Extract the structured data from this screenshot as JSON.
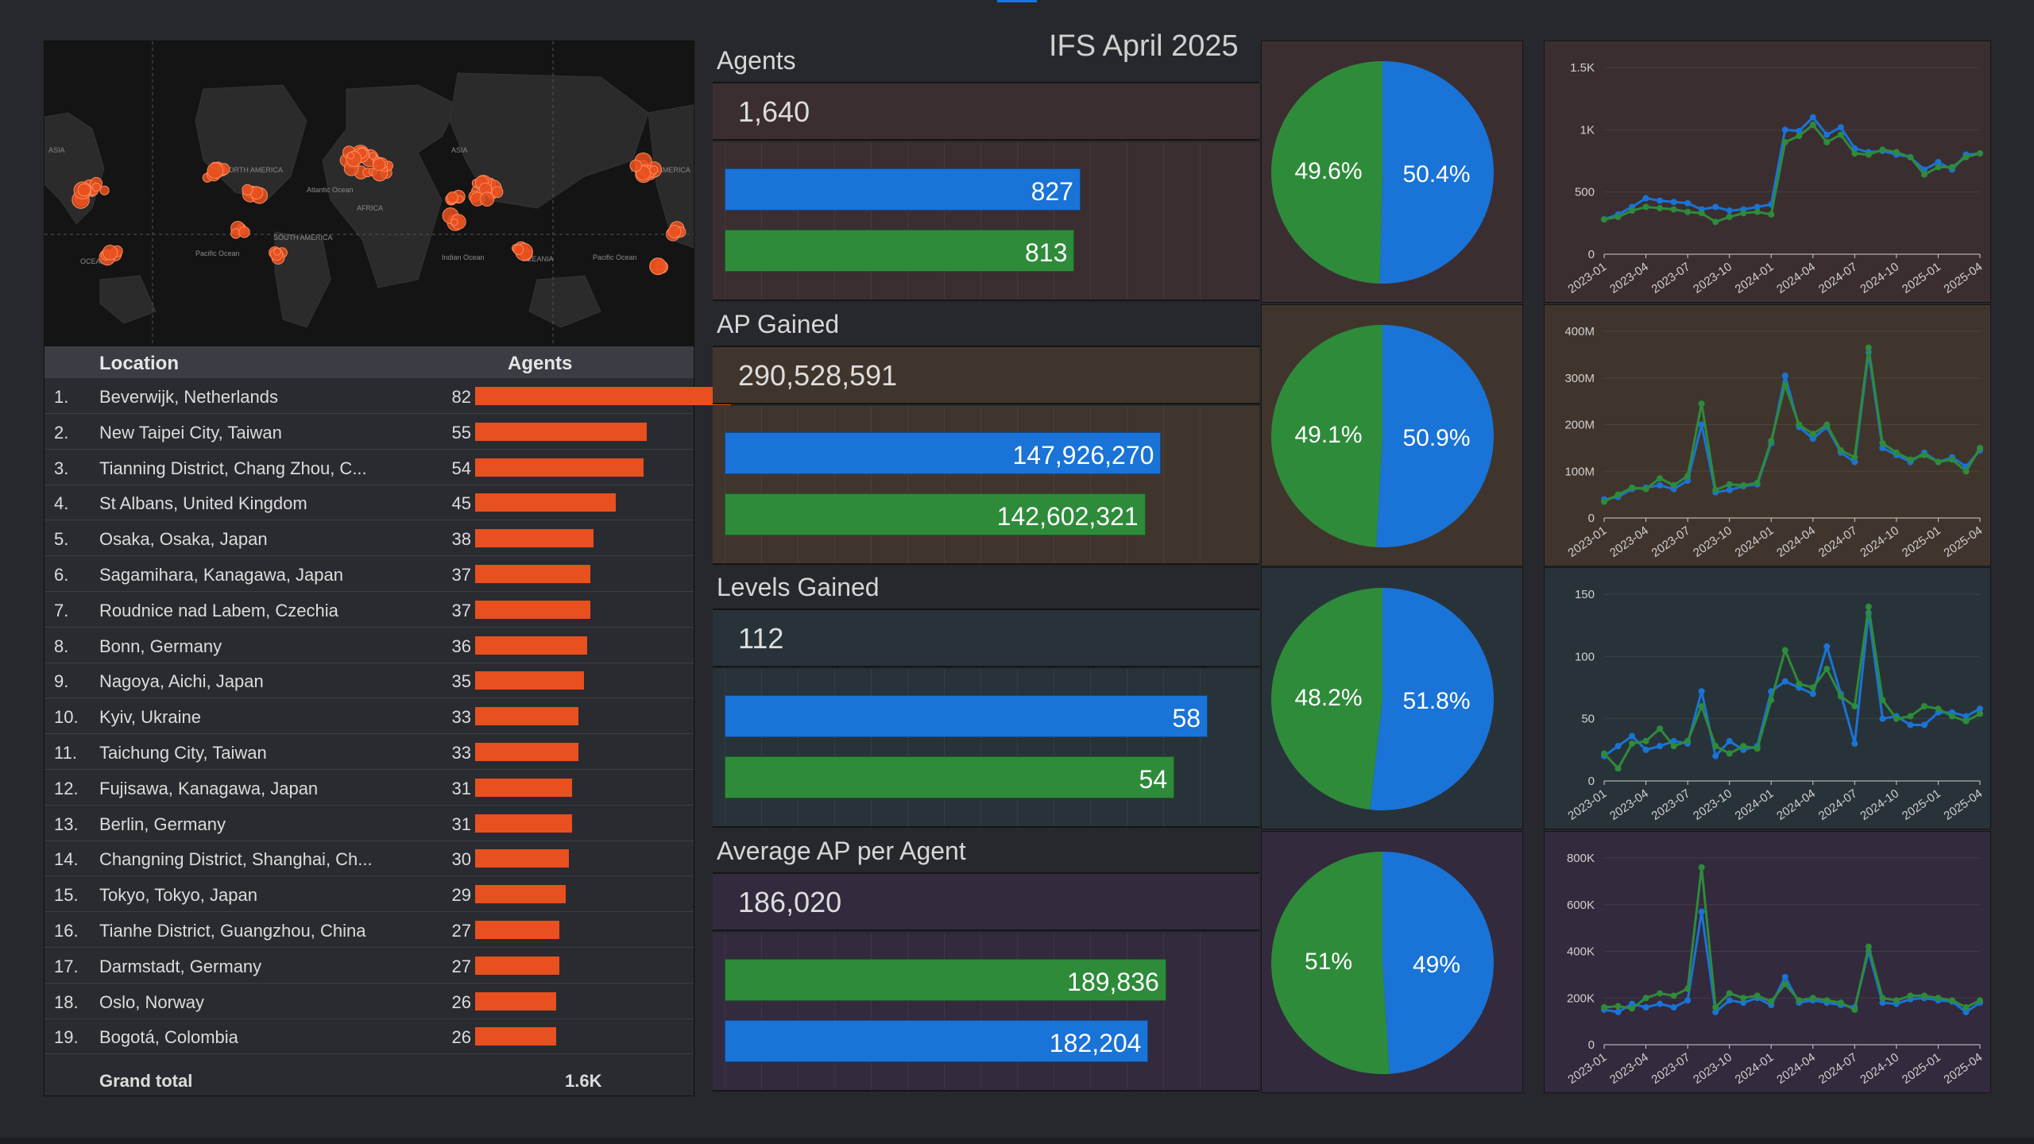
{
  "dashboard": {
    "title": "IFS April 2025"
  },
  "colors": {
    "blue": "#1a73d6",
    "green": "#2e8b3a",
    "bar_orange": "#e8501f",
    "agents_bg": "#3b2e31",
    "ap_bg": "#40352d",
    "levels_bg": "#283339",
    "avg_bg": "#332a3d"
  },
  "map": {
    "continent_labels": [
      "ASIA",
      "NORTH AMERICA",
      "Atlantic Ocean",
      "AFRICA",
      "ASIA",
      "NORTH AMERICA",
      "OCEANIA",
      "SOUTH AMERICA",
      "Indian Ocean",
      "OCEANIA",
      "Pacific Ocean",
      "Pacific Ocean"
    ],
    "marker_color": "#e8501f"
  },
  "table": {
    "header_location": "Location",
    "header_agents": "Agents",
    "rows": [
      {
        "num": "1.",
        "location": "Beverwijk, Netherlands",
        "agents": 82
      },
      {
        "num": "2.",
        "location": "New Taipei City, Taiwan",
        "agents": 55
      },
      {
        "num": "3.",
        "location": "Tianning District, Chang Zhou, C...",
        "agents": 54
      },
      {
        "num": "4.",
        "location": "St Albans, United Kingdom",
        "agents": 45
      },
      {
        "num": "5.",
        "location": "Osaka, Osaka, Japan",
        "agents": 38
      },
      {
        "num": "6.",
        "location": "Sagamihara, Kanagawa, Japan",
        "agents": 37
      },
      {
        "num": "7.",
        "location": "Roudnice nad Labem, Czechia",
        "agents": 37
      },
      {
        "num": "8.",
        "location": "Bonn, Germany",
        "agents": 36
      },
      {
        "num": "9.",
        "location": "Nagoya, Aichi, Japan",
        "agents": 35
      },
      {
        "num": "10.",
        "location": "Kyiv, Ukraine",
        "agents": 33
      },
      {
        "num": "11.",
        "location": "Taichung City, Taiwan",
        "agents": 33
      },
      {
        "num": "12.",
        "location": "Fujisawa, Kanagawa, Japan",
        "agents": 31
      },
      {
        "num": "13.",
        "location": "Berlin, Germany",
        "agents": 31
      },
      {
        "num": "14.",
        "location": "Changning District, Shanghai, Ch...",
        "agents": 30
      },
      {
        "num": "15.",
        "location": "Tokyo, Tokyo, Japan",
        "agents": 29
      },
      {
        "num": "16.",
        "location": "Tianhe District, Guangzhou, China",
        "agents": 27
      },
      {
        "num": "17.",
        "location": "Darmstadt, Germany",
        "agents": 27
      },
      {
        "num": "18.",
        "location": "Oslo, Norway",
        "agents": 26
      },
      {
        "num": "19.",
        "location": "Bogotá, Colombia",
        "agents": 26
      }
    ],
    "grand_total_label": "Grand total",
    "grand_total_value": "1.6K"
  },
  "sections": [
    {
      "key": "agents",
      "title": "Agents",
      "total": "1,640",
      "bg": "#3b2e31",
      "bars": [
        {
          "color": "blue",
          "value": 827,
          "label": "827"
        },
        {
          "color": "green",
          "value": 813,
          "label": "813"
        }
      ],
      "bar_max": 1200,
      "pie": {
        "blue_pct": 50.4,
        "green_pct": 49.6,
        "blue_label": "50.4%",
        "green_label": "49.6%"
      }
    },
    {
      "key": "ap",
      "title": "AP Gained",
      "total": "290,528,591",
      "bg": "#40352d",
      "bars": [
        {
          "color": "blue",
          "value": 147926270,
          "label": "147,926,270"
        },
        {
          "color": "green",
          "value": 142602321,
          "label": "142,602,321"
        }
      ],
      "bar_max": 175000000,
      "pie": {
        "blue_pct": 50.9,
        "green_pct": 49.1,
        "blue_label": "50.9%",
        "green_label": "49.1%"
      }
    },
    {
      "key": "levels",
      "title": "Levels Gained",
      "total": "112",
      "bg": "#283339",
      "bars": [
        {
          "color": "blue",
          "value": 58,
          "label": "58"
        },
        {
          "color": "green",
          "value": 54,
          "label": "54"
        }
      ],
      "bar_max": 62,
      "pie": {
        "blue_pct": 51.8,
        "green_pct": 48.2,
        "blue_label": "51.8%",
        "green_label": "48.2%"
      }
    },
    {
      "key": "avg",
      "title": "Average AP per Agent",
      "total": "186,020",
      "bg": "#332a3d",
      "bars": [
        {
          "color": "green",
          "value": 189836,
          "label": "189,836"
        },
        {
          "color": "blue",
          "value": 182204,
          "label": "182,204"
        }
      ],
      "bar_max": 222000,
      "pie": {
        "blue_pct": 49,
        "green_pct": 51,
        "blue_label": "49%",
        "green_label": "51%"
      }
    }
  ],
  "chart_data": [
    {
      "type": "bar",
      "title": "Location / Agents",
      "categories": [
        "Beverwijk, Netherlands",
        "New Taipei City, Taiwan",
        "Tianning District, Chang Zhou, C...",
        "St Albans, United Kingdom",
        "Osaka, Osaka, Japan",
        "Sagamihara, Kanagawa, Japan",
        "Roudnice nad Labem, Czechia",
        "Bonn, Germany",
        "Nagoya, Aichi, Japan",
        "Kyiv, Ukraine",
        "Taichung City, Taiwan",
        "Fujisawa, Kanagawa, Japan",
        "Berlin, Germany",
        "Changning District, Shanghai, Ch...",
        "Tokyo, Tokyo, Japan",
        "Tianhe District, Guangzhou, China",
        "Darmstadt, Germany",
        "Oslo, Norway",
        "Bogotá, Colombia"
      ],
      "values": [
        82,
        55,
        54,
        45,
        38,
        37,
        37,
        36,
        35,
        33,
        33,
        31,
        31,
        30,
        29,
        27,
        27,
        26,
        26
      ]
    },
    {
      "type": "line",
      "key": "agents",
      "x": [
        "2023-01",
        "2023-02",
        "2023-03",
        "2023-04",
        "2023-05",
        "2023-06",
        "2023-07",
        "2023-08",
        "2023-09",
        "2023-10",
        "2023-11",
        "2023-12",
        "2024-01",
        "2024-02",
        "2024-03",
        "2024-04",
        "2024-05",
        "2024-06",
        "2024-07",
        "2024-08",
        "2024-09",
        "2024-10",
        "2024-11",
        "2024-12",
        "2025-01",
        "2025-02",
        "2025-03",
        "2025-04"
      ],
      "x_ticks": [
        "2023-01",
        "2023-04",
        "2023-07",
        "2023-10",
        "2024-01",
        "2024-04",
        "2024-07",
        "2024-10",
        "2025-01",
        "2025-04"
      ],
      "y_ticks": [
        {
          "v": 0,
          "label": "0"
        },
        {
          "v": 500,
          "label": "500"
        },
        {
          "v": 1000,
          "label": "1K"
        },
        {
          "v": 1500,
          "label": "1.5K"
        }
      ],
      "ylim": [
        0,
        1500
      ],
      "series": [
        {
          "color": "blue",
          "values": [
            280,
            320,
            380,
            450,
            430,
            420,
            410,
            360,
            380,
            350,
            360,
            380,
            400,
            1000,
            990,
            1100,
            960,
            1020,
            850,
            820,
            830,
            800,
            780,
            680,
            740,
            680,
            800,
            810
          ]
        },
        {
          "color": "green",
          "values": [
            280,
            300,
            350,
            380,
            370,
            360,
            340,
            330,
            260,
            300,
            330,
            340,
            320,
            900,
            950,
            1040,
            900,
            960,
            810,
            800,
            840,
            820,
            780,
            640,
            700,
            700,
            780,
            810
          ]
        }
      ]
    },
    {
      "type": "line",
      "key": "ap",
      "x": [
        "2023-01",
        "2023-02",
        "2023-03",
        "2023-04",
        "2023-05",
        "2023-06",
        "2023-07",
        "2023-08",
        "2023-09",
        "2023-10",
        "2023-11",
        "2023-12",
        "2024-01",
        "2024-02",
        "2024-03",
        "2024-04",
        "2024-05",
        "2024-06",
        "2024-07",
        "2024-08",
        "2024-09",
        "2024-10",
        "2024-11",
        "2024-12",
        "2025-01",
        "2025-02",
        "2025-03",
        "2025-04"
      ],
      "x_ticks": [
        "2023-01",
        "2023-04",
        "2023-07",
        "2023-10",
        "2024-01",
        "2024-04",
        "2024-07",
        "2024-10",
        "2025-01",
        "2025-04"
      ],
      "y_ticks": [
        {
          "v": 0,
          "label": "0"
        },
        {
          "v": 100000000,
          "label": "100M"
        },
        {
          "v": 200000000,
          "label": "200M"
        },
        {
          "v": 300000000,
          "label": "300M"
        },
        {
          "v": 400000000,
          "label": "400M"
        }
      ],
      "ylim": [
        0,
        400000000
      ],
      "series": [
        {
          "color": "blue",
          "values": [
            40000000,
            45000000,
            62000000,
            65000000,
            70000000,
            62000000,
            80000000,
            200000000,
            55000000,
            60000000,
            68000000,
            72000000,
            160000000,
            305000000,
            195000000,
            170000000,
            195000000,
            140000000,
            120000000,
            355000000,
            150000000,
            135000000,
            120000000,
            140000000,
            120000000,
            130000000,
            110000000,
            145000000
          ]
        },
        {
          "color": "green",
          "values": [
            35000000,
            50000000,
            65000000,
            62000000,
            85000000,
            70000000,
            90000000,
            245000000,
            60000000,
            72000000,
            70000000,
            75000000,
            165000000,
            285000000,
            200000000,
            180000000,
            200000000,
            145000000,
            130000000,
            365000000,
            160000000,
            140000000,
            125000000,
            135000000,
            120000000,
            125000000,
            100000000,
            150000000
          ]
        }
      ]
    },
    {
      "type": "line",
      "key": "levels",
      "x": [
        "2023-01",
        "2023-02",
        "2023-03",
        "2023-04",
        "2023-05",
        "2023-06",
        "2023-07",
        "2023-08",
        "2023-09",
        "2023-10",
        "2023-11",
        "2023-12",
        "2024-01",
        "2024-02",
        "2024-03",
        "2024-04",
        "2024-05",
        "2024-06",
        "2024-07",
        "2024-08",
        "2024-09",
        "2024-10",
        "2024-11",
        "2024-12",
        "2025-01",
        "2025-02",
        "2025-03",
        "2025-04"
      ],
      "x_ticks": [
        "2023-01",
        "2023-04",
        "2023-07",
        "2023-10",
        "2024-01",
        "2024-04",
        "2024-07",
        "2024-10",
        "2025-01",
        "2025-04"
      ],
      "y_ticks": [
        {
          "v": 0,
          "label": "0"
        },
        {
          "v": 50,
          "label": "50"
        },
        {
          "v": 100,
          "label": "100"
        },
        {
          "v": 150,
          "label": "150"
        }
      ],
      "ylim": [
        0,
        150
      ],
      "series": [
        {
          "color": "blue",
          "values": [
            20,
            28,
            36,
            25,
            28,
            32,
            30,
            72,
            20,
            32,
            25,
            28,
            72,
            80,
            75,
            70,
            108,
            70,
            30,
            135,
            50,
            52,
            45,
            45,
            55,
            55,
            52,
            58
          ]
        },
        {
          "color": "green",
          "values": [
            22,
            10,
            30,
            32,
            42,
            28,
            32,
            60,
            28,
            22,
            28,
            26,
            65,
            105,
            78,
            75,
            90,
            68,
            60,
            140,
            65,
            50,
            52,
            60,
            58,
            52,
            48,
            54
          ]
        }
      ]
    },
    {
      "type": "line",
      "key": "avg",
      "x": [
        "2023-01",
        "2023-02",
        "2023-03",
        "2023-04",
        "2023-05",
        "2023-06",
        "2023-07",
        "2023-08",
        "2023-09",
        "2023-10",
        "2023-11",
        "2023-12",
        "2024-01",
        "2024-02",
        "2024-03",
        "2024-04",
        "2024-05",
        "2024-06",
        "2024-07",
        "2024-08",
        "2024-09",
        "2024-10",
        "2024-11",
        "2024-12",
        "2025-01",
        "2025-02",
        "2025-03",
        "2025-04"
      ],
      "x_ticks": [
        "2023-01",
        "2023-04",
        "2023-07",
        "2023-10",
        "2024-01",
        "2024-04",
        "2024-07",
        "2024-10",
        "2025-01",
        "2025-04"
      ],
      "y_ticks": [
        {
          "v": 0,
          "label": "0"
        },
        {
          "v": 200000,
          "label": "200K"
        },
        {
          "v": 400000,
          "label": "400K"
        },
        {
          "v": 600000,
          "label": "600K"
        },
        {
          "v": 800000,
          "label": "800K"
        }
      ],
      "ylim": [
        0,
        800000
      ],
      "series": [
        {
          "color": "blue",
          "values": [
            150000,
            140000,
            175000,
            160000,
            175000,
            160000,
            190000,
            570000,
            140000,
            190000,
            180000,
            200000,
            170000,
            290000,
            180000,
            190000,
            180000,
            170000,
            160000,
            400000,
            180000,
            175000,
            195000,
            200000,
            190000,
            185000,
            140000,
            180000
          ]
        },
        {
          "color": "green",
          "values": [
            160000,
            165000,
            155000,
            200000,
            220000,
            210000,
            240000,
            760000,
            160000,
            220000,
            200000,
            210000,
            185000,
            260000,
            190000,
            200000,
            190000,
            180000,
            150000,
            420000,
            200000,
            190000,
            210000,
            210000,
            200000,
            190000,
            160000,
            190000
          ]
        }
      ]
    }
  ]
}
